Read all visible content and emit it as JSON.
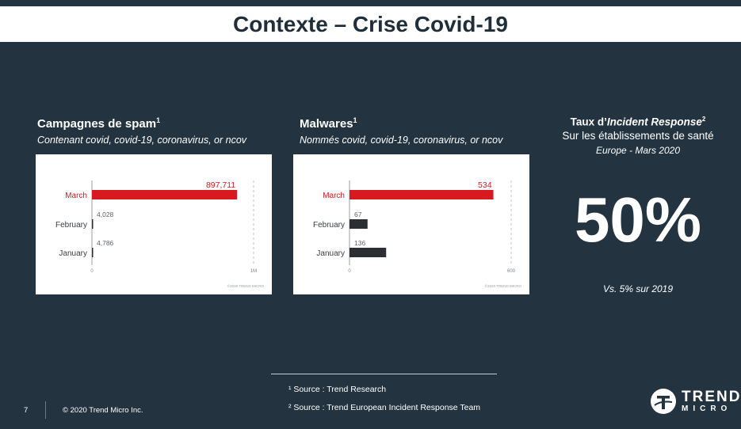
{
  "slide": {
    "title": "Contexte – Crise Covid-19",
    "page_number": "7",
    "copyright": "© 2020 Trend Micro Inc."
  },
  "panels": [
    {
      "heading": "Campagnes de spam",
      "sup": "1",
      "subheading": "Contenant covid, covid-19, coronavirus, or ncov"
    },
    {
      "heading": "Malwares",
      "sup": "1",
      "subheading": "Nommés covid, covid-19, coronavirus, or ncov"
    }
  ],
  "incident": {
    "heading_prefix": "Taux d’",
    "heading_italic": "Incident Response",
    "sup": "2",
    "line2": "Sur les établissements de santé",
    "line3": "Europe - Mars 2020",
    "big_value": "50%",
    "comparison": "Vs. 5% sur 2019"
  },
  "sources": {
    "s1": "¹ Source : Trend Research",
    "s2": "² Source : Trend European Incident Response Team"
  },
  "logo": {
    "line1": "TREND",
    "line2": "MICRO",
    "icon": "trend-micro-logo-icon"
  },
  "colors": {
    "background": "#233340",
    "highlight_bar": "#d71920",
    "other_bar": "#2b2f33"
  },
  "chart_data": [
    {
      "type": "bar",
      "orientation": "horizontal",
      "categories": [
        "March",
        "February",
        "January"
      ],
      "values": [
        897711,
        4028,
        4786
      ],
      "value_labels": [
        "897,711",
        "4,028",
        "4,786"
      ],
      "xlim": [
        0,
        1000000
      ],
      "x_tick_labels": [
        "0",
        "1M"
      ],
      "watermark": "©2020 TREND MICRO",
      "highlight_category": "March"
    },
    {
      "type": "bar",
      "orientation": "horizontal",
      "categories": [
        "March",
        "February",
        "January"
      ],
      "values": [
        534,
        67,
        136
      ],
      "value_labels": [
        "534",
        "67",
        "136"
      ],
      "xlim": [
        0,
        600
      ],
      "x_tick_labels": [
        "0",
        "600"
      ],
      "watermark": "©2020 TREND MICRO",
      "highlight_category": "March"
    }
  ]
}
